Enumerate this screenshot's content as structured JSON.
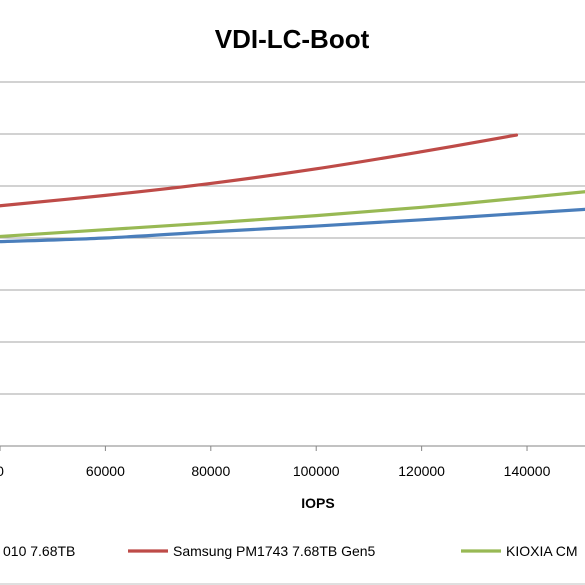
{
  "chart_data": {
    "type": "line",
    "title": "VDI-LC-Boot",
    "xlabel": "IOPS",
    "ylabel": "",
    "x_ticks": [
      "0",
      "60000",
      "80000",
      "100000",
      "120000",
      "140000"
    ],
    "xlim": [
      40000,
      151000
    ],
    "ylim": [
      0,
      7
    ],
    "grid": true,
    "legend_position": "bottom",
    "series": [
      {
        "name": "010 7.68TB",
        "color": "#4a7ebb",
        "x": [
          40000,
          60000,
          80000,
          100000,
          120000,
          140000,
          151000
        ],
        "y": [
          3.93,
          4.0,
          4.12,
          4.23,
          4.35,
          4.48,
          4.55
        ]
      },
      {
        "name": "Samsung PM1743 7.68TB Gen5",
        "color": "#be4b48",
        "x": [
          40000,
          60000,
          80000,
          100000,
          120000,
          138000
        ],
        "y": [
          4.62,
          4.82,
          5.05,
          5.33,
          5.66,
          5.98
        ]
      },
      {
        "name": "KIOXIA CM",
        "color": "#98b954",
        "x": [
          40000,
          60000,
          80000,
          100000,
          120000,
          140000,
          151000
        ],
        "y": [
          4.03,
          4.16,
          4.29,
          4.43,
          4.59,
          4.78,
          4.89
        ]
      }
    ]
  }
}
